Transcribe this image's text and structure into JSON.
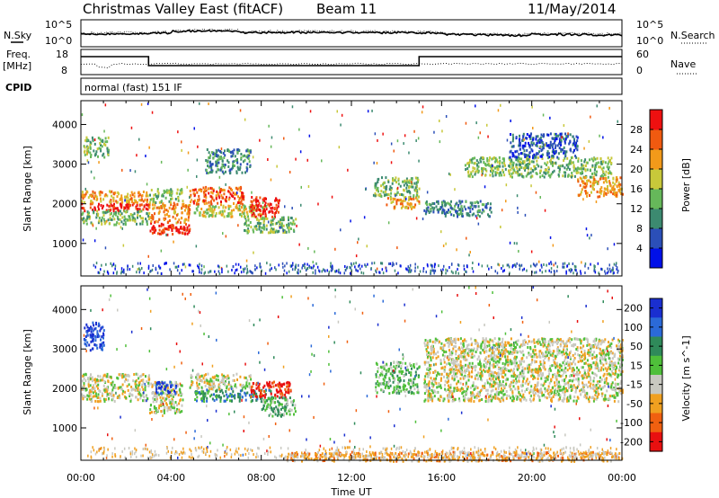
{
  "header": {
    "title": "Christmas Valley East (fitACF)",
    "beam": "Beam 11",
    "date": "11/May/2014"
  },
  "noise_panel": {
    "left_label": "N.Sky",
    "right_label": "N.Search",
    "left_ticks": [
      "10^5",
      "10^0"
    ],
    "right_ticks": [
      "10^5",
      "10^0"
    ]
  },
  "freq_panel": {
    "left_label_1": "Freq.",
    "left_label_2": "[MHz]",
    "right_label": "Nave",
    "left_ticks": [
      "18",
      "8"
    ],
    "right_ticks": [
      "60",
      "0"
    ]
  },
  "cpid": {
    "label": "CPID",
    "value": "normal (fast) 151 IF"
  },
  "chart_data": [
    {
      "type": "heatmap",
      "name": "power",
      "ylabel": "Slant Range [km]",
      "xlabel": "Time UT",
      "x_ticks": [
        "00:00",
        "04:00",
        "08:00",
        "12:00",
        "16:00",
        "20:00",
        "00:00"
      ],
      "xlim_hours": [
        0,
        24
      ],
      "y_ticks": [
        1000,
        2000,
        3000,
        4000
      ],
      "ylim": [
        180,
        4600
      ],
      "colorbar": {
        "label": "Power [dB]",
        "ticks": [
          "4",
          "8",
          "12",
          "16",
          "20",
          "24",
          "28"
        ],
        "colors": [
          "#0010e8",
          "#2b4fb8",
          "#3c8a70",
          "#66b85a",
          "#c8c83a",
          "#f29a1a",
          "#f05a10",
          "#ee1010"
        ]
      },
      "scatter_bands": [
        {
          "t0": 0.0,
          "t1": 3.0,
          "r0": 1850,
          "r1": 2050,
          "level": 7
        },
        {
          "t0": 0.0,
          "t1": 3.0,
          "r0": 2050,
          "r1": 2350,
          "level": 5
        },
        {
          "t0": 0.0,
          "t1": 3.0,
          "r0": 1500,
          "r1": 1850,
          "level": 3
        },
        {
          "t0": 0.1,
          "t1": 1.2,
          "r0": 3200,
          "r1": 3700,
          "level": 3
        },
        {
          "t0": 3.0,
          "t1": 4.8,
          "r0": 1250,
          "r1": 1550,
          "level": 7
        },
        {
          "t0": 3.0,
          "t1": 4.8,
          "r0": 1550,
          "r1": 2050,
          "level": 5
        },
        {
          "t0": 3.0,
          "t1": 4.5,
          "r0": 2050,
          "r1": 2400,
          "level": 3
        },
        {
          "t0": 4.8,
          "t1": 7.2,
          "r0": 2000,
          "r1": 2450,
          "level": 6
        },
        {
          "t0": 5.0,
          "t1": 8.2,
          "r0": 1700,
          "r1": 2000,
          "level": 4
        },
        {
          "t0": 7.5,
          "t1": 8.8,
          "r0": 1700,
          "r1": 2200,
          "level": 7
        },
        {
          "t0": 7.2,
          "t1": 9.5,
          "r0": 1300,
          "r1": 1700,
          "level": 3
        },
        {
          "t0": 5.5,
          "t1": 7.5,
          "r0": 2800,
          "r1": 3400,
          "level": 2
        },
        {
          "t0": 13.0,
          "t1": 15.0,
          "r0": 2200,
          "r1": 2700,
          "level": 3
        },
        {
          "t0": 13.5,
          "t1": 15.0,
          "r0": 1900,
          "r1": 2200,
          "level": 5
        },
        {
          "t0": 15.2,
          "t1": 18.2,
          "r0": 1700,
          "r1": 2100,
          "level": 2
        },
        {
          "t0": 17.0,
          "t1": 23.5,
          "r0": 2700,
          "r1": 3200,
          "level": 3
        },
        {
          "t0": 22.0,
          "t1": 24.0,
          "r0": 2200,
          "r1": 2700,
          "level": 5
        },
        {
          "t0": 19.0,
          "t1": 22.0,
          "r0": 3200,
          "r1": 3800,
          "level": 1
        }
      ]
    },
    {
      "type": "heatmap",
      "name": "velocity",
      "ylabel": "Slant Range [km]",
      "xlabel": "Time UT",
      "x_ticks": [
        "00:00",
        "04:00",
        "08:00",
        "12:00",
        "16:00",
        "20:00",
        "00:00"
      ],
      "xlim_hours": [
        0,
        24
      ],
      "y_ticks": [
        1000,
        2000,
        3000,
        4000
      ],
      "ylim": [
        180,
        4600
      ],
      "colorbar": {
        "label": "Velocity [m s^-1]",
        "ticks": [
          "200",
          "100",
          "50",
          "15",
          "-15",
          "-50",
          "-100",
          "-200"
        ],
        "colors": [
          "#1a2fd0",
          "#2b6ad8",
          "#2f8a5a",
          "#4fbf3a",
          "#c8c8c0",
          "#f0a020",
          "#f06010",
          "#e81010"
        ]
      },
      "scatter_bands": [
        {
          "t0": 0.0,
          "t1": 3.0,
          "r0": 1700,
          "r1": 2400,
          "level": 4
        },
        {
          "t0": 0.1,
          "t1": 1.0,
          "r0": 3000,
          "r1": 3700,
          "level": 0
        },
        {
          "t0": 3.0,
          "t1": 4.5,
          "r0": 1400,
          "r1": 2200,
          "level": 4
        },
        {
          "t0": 3.3,
          "t1": 4.2,
          "r0": 1900,
          "r1": 2200,
          "level": 0
        },
        {
          "t0": 4.8,
          "t1": 7.5,
          "r0": 2000,
          "r1": 2400,
          "level": 4
        },
        {
          "t0": 5.0,
          "t1": 8.5,
          "r0": 1700,
          "r1": 2000,
          "level": 2
        },
        {
          "t0": 7.5,
          "t1": 9.3,
          "r0": 1800,
          "r1": 2200,
          "level": 7
        },
        {
          "t0": 8.0,
          "t1": 9.5,
          "r0": 1300,
          "r1": 1800,
          "level": 3
        },
        {
          "t0": 13.0,
          "t1": 15.0,
          "r0": 1900,
          "r1": 2700,
          "level": 3
        },
        {
          "t0": 15.2,
          "t1": 24.0,
          "r0": 1700,
          "r1": 3300,
          "level": 4
        },
        {
          "t0": 9.0,
          "t1": 24.0,
          "r0": 180,
          "r1": 420,
          "level": 5
        }
      ]
    }
  ]
}
